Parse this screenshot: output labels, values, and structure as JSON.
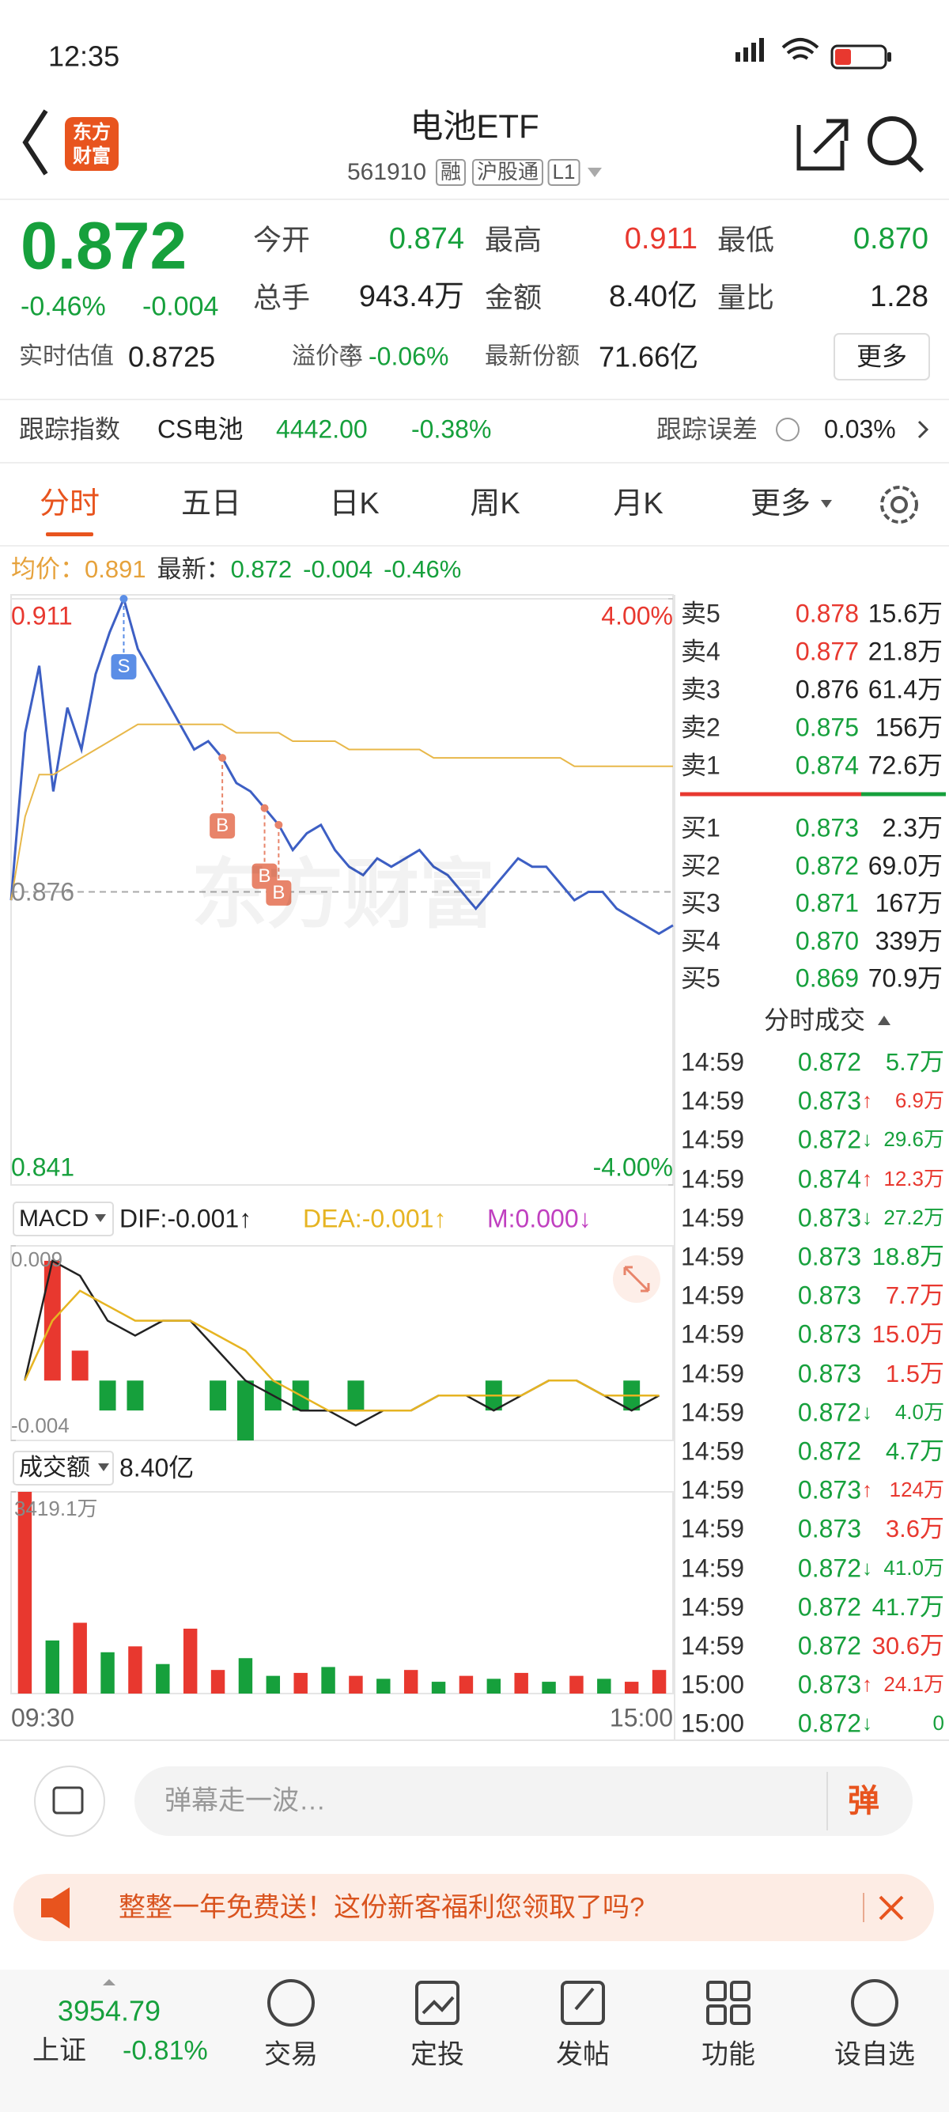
{
  "status_bar": {
    "time": "12:35",
    "battery": "14"
  },
  "header": {
    "logo": [
      "东方",
      "财富"
    ],
    "title": "电池ETF",
    "code": "561910",
    "tags": [
      "融",
      "沪股通",
      "L1"
    ]
  },
  "quote": {
    "price": "0.872",
    "change_pct": "-0.46%",
    "change": "-0.004",
    "fields": [
      {
        "label": "今开",
        "value": "0.874",
        "color": "green"
      },
      {
        "label": "最高",
        "value": "0.911",
        "color": "red"
      },
      {
        "label": "最低",
        "value": "0.870",
        "color": "green"
      },
      {
        "label": "总手",
        "value": "943.4万",
        "color": "black"
      },
      {
        "label": "金额",
        "value": "8.40亿",
        "color": "black"
      },
      {
        "label": "量比",
        "value": "1.28",
        "color": "black"
      }
    ],
    "estimate_label": "实时估值",
    "estimate": "0.8725",
    "premium_label": "溢价率",
    "premium": "-0.06%",
    "shares_label": "最新份额",
    "shares": "71.66亿",
    "more": "更多"
  },
  "tracking": {
    "label": "跟踪指数",
    "index": "CS电池",
    "value": "4442.00",
    "pct": "-0.38%",
    "error_label": "跟踪误差",
    "error": "0.03%"
  },
  "tabs": [
    "分时",
    "五日",
    "日K",
    "周K",
    "月K",
    "更多"
  ],
  "info": {
    "avg_label": "均价：",
    "avg": "0.891",
    "last_label": "最新：",
    "last": "0.872",
    "change": "-0.004",
    "pct": "-0.46%"
  },
  "chart_data": [
    {
      "type": "line",
      "watermark": "东方财富",
      "ylim": [
        0.841,
        0.911
      ],
      "yticks": [
        0.911,
        0.876,
        0.841
      ],
      "y2lim": [
        -4,
        4
      ],
      "y2ticks": [
        {
          "value": 4,
          "label": "4.00%"
        },
        {
          "value": -4,
          "label": "-4.00%"
        }
      ],
      "xlabels": [
        "09:30",
        "15:00"
      ],
      "series": [
        {
          "color": "#3d5fc4",
          "values": [
            0.875,
            0.895,
            0.903,
            0.888,
            0.898,
            0.893,
            0.902,
            0.907,
            0.911,
            0.905,
            0.902,
            0.899,
            0.896,
            0.893,
            0.894,
            0.892,
            0.889,
            0.888,
            0.886,
            0.884,
            0.881,
            0.883,
            0.884,
            0.881,
            0.879,
            0.878,
            0.88,
            0.879,
            0.88,
            0.881,
            0.879,
            0.878,
            0.876,
            0.874,
            0.876,
            0.878,
            0.88,
            0.879,
            0.879,
            0.877,
            0.875,
            0.876,
            0.876,
            0.874,
            0.873,
            0.872,
            0.871,
            0.872
          ]
        },
        {
          "color": "#e8b84a",
          "values": [
            0.875,
            0.885,
            0.89,
            0.89,
            0.891,
            0.892,
            0.893,
            0.894,
            0.895,
            0.896,
            0.896,
            0.896,
            0.896,
            0.896,
            0.896,
            0.896,
            0.895,
            0.895,
            0.895,
            0.895,
            0.894,
            0.894,
            0.894,
            0.894,
            0.893,
            0.893,
            0.893,
            0.893,
            0.893,
            0.893,
            0.892,
            0.892,
            0.892,
            0.892,
            0.892,
            0.892,
            0.892,
            0.892,
            0.892,
            0.892,
            0.891,
            0.891,
            0.891,
            0.891,
            0.891,
            0.891,
            0.891,
            0.891
          ]
        }
      ],
      "annotations": [
        {
          "label": "S",
          "point": 8,
          "color": "#5b8ee6"
        },
        {
          "label": "B",
          "point": 15,
          "color": "#e8846a"
        },
        {
          "label": "B",
          "point": 18,
          "color": "#e8846a"
        },
        {
          "label": "B",
          "point": 19,
          "color": "#e8846a"
        }
      ]
    },
    {
      "type": "macd",
      "label": "MACD",
      "dif_label": "DIF:-0.001↑",
      "dea_label": "DEA:-0.001↑",
      "m_label": "M:0.000↓",
      "ylim": [
        -0.004,
        0.009
      ],
      "yticks": [
        0.009,
        -0.004
      ],
      "dif": [
        0.0,
        0.008,
        0.007,
        0.004,
        0.003,
        0.004,
        0.004,
        0.002,
        0.0,
        -0.001,
        -0.002,
        -0.002,
        -0.003,
        -0.002,
        -0.002,
        -0.001,
        -0.001,
        -0.002,
        -0.001,
        0.0,
        0.0,
        -0.001,
        -0.002,
        -0.001
      ],
      "dea": [
        0.0,
        0.004,
        0.006,
        0.005,
        0.004,
        0.004,
        0.004,
        0.003,
        0.002,
        0.0,
        -0.001,
        -0.002,
        -0.002,
        -0.002,
        -0.002,
        -0.001,
        -0.001,
        -0.001,
        -0.001,
        0.0,
        0.0,
        -0.001,
        -0.001,
        -0.001
      ],
      "histogram": [
        0,
        0.008,
        0.002,
        -0.002,
        -0.002,
        0,
        0,
        -0.002,
        -0.004,
        -0.002,
        -0.002,
        0,
        -0.002,
        0,
        0,
        0,
        0,
        -0.002,
        0,
        0,
        0,
        0,
        -0.002,
        0
      ]
    },
    {
      "type": "bar",
      "label": "成交额",
      "total": "8.40亿",
      "ylim": [
        0,
        3419.1
      ],
      "yticks": [
        {
          "value": 3419.1,
          "label": "3419.1万"
        }
      ],
      "values": [
        3419.1,
        900,
        1200,
        700,
        800,
        500,
        1100,
        400,
        600,
        300,
        350,
        450,
        300,
        250,
        400,
        200,
        300,
        250,
        350,
        200,
        300,
        250,
        200,
        400
      ],
      "colors": [
        "red",
        "green",
        "red",
        "green",
        "red",
        "green",
        "red",
        "red",
        "green",
        "green",
        "red",
        "green",
        "red",
        "green",
        "red",
        "green",
        "red",
        "green",
        "red",
        "green",
        "red",
        "green",
        "red",
        "red"
      ]
    }
  ],
  "order_book": {
    "asks": [
      {
        "label": "卖5",
        "price": "0.878",
        "volume": "15.6万",
        "color": "red"
      },
      {
        "label": "卖4",
        "price": "0.877",
        "volume": "21.8万",
        "color": "red"
      },
      {
        "label": "卖3",
        "price": "0.876",
        "volume": "61.4万",
        "color": "black"
      },
      {
        "label": "卖2",
        "price": "0.875",
        "volume": "156万",
        "color": "green"
      },
      {
        "label": "卖1",
        "price": "0.874",
        "volume": "72.6万",
        "color": "green"
      }
    ],
    "bids": [
      {
        "label": "买1",
        "price": "0.873",
        "volume": "2.3万",
        "color": "green"
      },
      {
        "label": "买2",
        "price": "0.872",
        "volume": "69.0万",
        "color": "green"
      },
      {
        "label": "买3",
        "price": "0.871",
        "volume": "167万",
        "color": "green"
      },
      {
        "label": "买4",
        "price": "0.870",
        "volume": "339万",
        "color": "green"
      },
      {
        "label": "买5",
        "price": "0.869",
        "volume": "70.9万",
        "color": "green"
      }
    ],
    "trades_title": "分时成交",
    "trades": [
      {
        "time": "14:59",
        "price": "0.872",
        "volume": "5.7万",
        "color": "green"
      },
      {
        "time": "14:59",
        "price": "0.873",
        "dir": "↑",
        "volume": "6.9万",
        "color": "red"
      },
      {
        "time": "14:59",
        "price": "0.872",
        "dir": "↓",
        "volume": "29.6万",
        "color": "green"
      },
      {
        "time": "14:59",
        "price": "0.874",
        "dir": "↑",
        "volume": "12.3万",
        "color": "red"
      },
      {
        "time": "14:59",
        "price": "0.873",
        "dir": "↓",
        "volume": "27.2万",
        "color": "green"
      },
      {
        "time": "14:59",
        "price": "0.873",
        "volume": "18.8万",
        "color": "green"
      },
      {
        "time": "14:59",
        "price": "0.873",
        "volume": "7.7万",
        "color": "red"
      },
      {
        "time": "14:59",
        "price": "0.873",
        "volume": "15.0万",
        "color": "red"
      },
      {
        "time": "14:59",
        "price": "0.873",
        "volume": "1.5万",
        "color": "red"
      },
      {
        "time": "14:59",
        "price": "0.872",
        "dir": "↓",
        "volume": "4.0万",
        "color": "green"
      },
      {
        "time": "14:59",
        "price": "0.872",
        "volume": "4.7万",
        "color": "green"
      },
      {
        "time": "14:59",
        "price": "0.873",
        "dir": "↑",
        "volume": "124万",
        "color": "red"
      },
      {
        "time": "14:59",
        "price": "0.873",
        "volume": "3.6万",
        "color": "red"
      },
      {
        "time": "14:59",
        "price": "0.872",
        "dir": "↓",
        "volume": "41.0万",
        "color": "green"
      },
      {
        "time": "14:59",
        "price": "0.872",
        "volume": "41.7万",
        "color": "green"
      },
      {
        "time": "14:59",
        "price": "0.872",
        "volume": "30.6万",
        "color": "red"
      },
      {
        "time": "15:00",
        "price": "0.873",
        "dir": "↑",
        "volume": "24.1万",
        "color": "red"
      },
      {
        "time": "15:00",
        "price": "0.872",
        "dir": "↓",
        "volume": "0",
        "color": "green"
      }
    ]
  },
  "comment": {
    "placeholder": "弹幕走一波…",
    "button": "弹"
  },
  "banner": {
    "text": "整整一年免费送！这份新客福利您领取了吗?"
  },
  "nav": {
    "index_value": "3954.79",
    "index_name": "上证",
    "index_pct": "-0.81%",
    "items": [
      "交易",
      "定投",
      "发帖",
      "功能",
      "设自选"
    ]
  }
}
